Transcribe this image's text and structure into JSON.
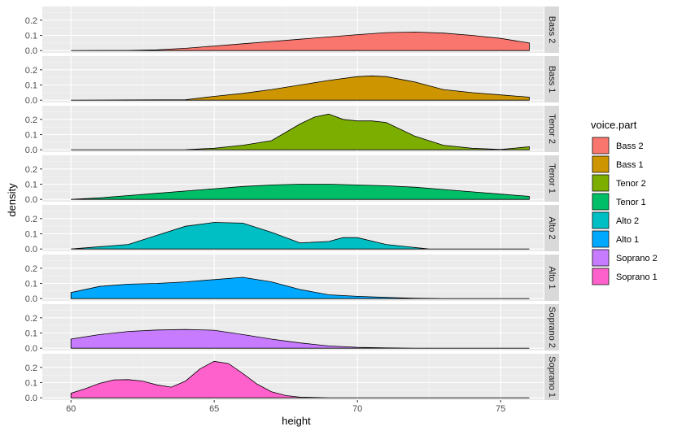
{
  "chart_data": {
    "type": "area",
    "xlabel": "height",
    "ylabel": "density",
    "xlim": [
      59,
      76.5
    ],
    "ylim": [
      -0.015,
      0.29
    ],
    "x_ticks": [
      60,
      65,
      70,
      75
    ],
    "y_ticks": [
      0.0,
      0.1,
      0.2
    ],
    "y_tick_labels": [
      "0.0",
      "0.1",
      "0.2"
    ],
    "grid": true,
    "legend_position": "right",
    "legend_title": "voice.part",
    "facets": [
      {
        "name": "Bass 2",
        "color": "#F8766D",
        "x": [
          60,
          62,
          63,
          64,
          65,
          66,
          67,
          68,
          69,
          70,
          71,
          72,
          73,
          74,
          75,
          76
        ],
        "y": [
          0.0,
          0.001,
          0.005,
          0.015,
          0.03,
          0.045,
          0.06,
          0.075,
          0.09,
          0.105,
          0.118,
          0.122,
          0.115,
          0.1,
          0.08,
          0.05
        ]
      },
      {
        "name": "Bass 1",
        "color": "#CD9600",
        "x": [
          60,
          64,
          65,
          66,
          67,
          68,
          69,
          70,
          70.5,
          71,
          72,
          73,
          74,
          75,
          76
        ],
        "y": [
          0.0,
          0.003,
          0.025,
          0.045,
          0.07,
          0.1,
          0.13,
          0.155,
          0.16,
          0.155,
          0.12,
          0.07,
          0.05,
          0.035,
          0.02
        ]
      },
      {
        "name": "Tenor 2",
        "color": "#7CAE00",
        "x": [
          60,
          64,
          65,
          66,
          67,
          68,
          68.5,
          69,
          69.5,
          70,
          70.5,
          71,
          72,
          73,
          74,
          75,
          76
        ],
        "y": [
          0.0,
          0.001,
          0.01,
          0.03,
          0.06,
          0.17,
          0.215,
          0.235,
          0.2,
          0.19,
          0.19,
          0.18,
          0.09,
          0.03,
          0.01,
          0.002,
          0.02
        ]
      },
      {
        "name": "Tenor 1",
        "color": "#00BE67",
        "x": [
          60,
          61,
          62,
          63,
          64,
          65,
          66,
          67,
          68,
          69,
          70,
          71,
          72,
          73,
          74,
          75,
          76
        ],
        "y": [
          0.0,
          0.01,
          0.025,
          0.04,
          0.055,
          0.07,
          0.085,
          0.095,
          0.1,
          0.1,
          0.095,
          0.09,
          0.08,
          0.065,
          0.05,
          0.035,
          0.02
        ]
      },
      {
        "name": "Alto 2",
        "color": "#00BFC4",
        "x": [
          60,
          62,
          63,
          64,
          65,
          66,
          67,
          68,
          69,
          69.5,
          70,
          71,
          72.5,
          76
        ],
        "y": [
          0.0,
          0.03,
          0.09,
          0.15,
          0.175,
          0.17,
          0.11,
          0.04,
          0.05,
          0.075,
          0.075,
          0.03,
          0.0,
          0.0
        ]
      },
      {
        "name": "Alto 1",
        "color": "#00A9FF",
        "x": [
          60,
          61,
          62,
          63,
          64,
          65,
          66,
          67,
          68,
          69,
          70,
          71,
          72,
          73,
          74,
          75,
          76
        ],
        "y": [
          0.04,
          0.08,
          0.095,
          0.1,
          0.11,
          0.125,
          0.14,
          0.11,
          0.06,
          0.025,
          0.015,
          0.008,
          0.002,
          0.0,
          0.0,
          0.0,
          0.0
        ]
      },
      {
        "name": "Soprano 2",
        "color": "#C77CFF",
        "x": [
          60,
          61,
          62,
          63,
          64,
          65,
          66,
          67,
          68,
          69,
          70,
          71,
          72,
          76
        ],
        "y": [
          0.06,
          0.09,
          0.11,
          0.12,
          0.123,
          0.118,
          0.09,
          0.06,
          0.035,
          0.015,
          0.006,
          0.002,
          0.0,
          0.0
        ]
      },
      {
        "name": "Soprano 1",
        "color": "#FF61CC",
        "x": [
          60,
          60.5,
          61,
          61.5,
          62,
          62.5,
          63,
          63.5,
          64,
          64.5,
          65,
          65.5,
          66,
          66.5,
          67,
          67.5,
          68,
          69,
          70,
          76
        ],
        "y": [
          0.03,
          0.06,
          0.095,
          0.118,
          0.12,
          0.11,
          0.085,
          0.07,
          0.11,
          0.19,
          0.24,
          0.225,
          0.16,
          0.09,
          0.04,
          0.015,
          0.004,
          0.0,
          0.0,
          0.0
        ]
      }
    ]
  }
}
